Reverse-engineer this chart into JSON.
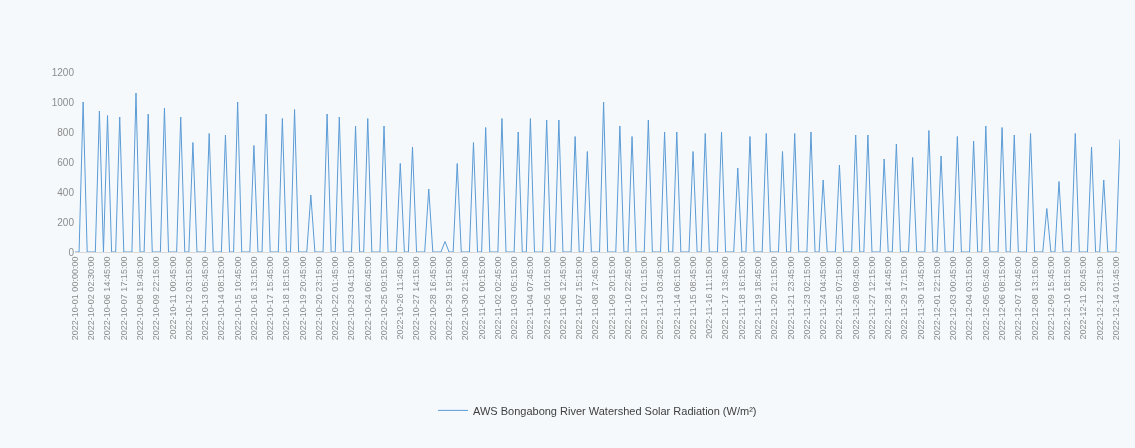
{
  "chart_data": {
    "type": "line",
    "categories": [
      "2022-10-01 00:00:00",
      null,
      null,
      null,
      "2022-10-02 02:30:00",
      null,
      null,
      null,
      "2022-10-06 14:45:00",
      null,
      null,
      null,
      "2022-10-07 17:15:00",
      null,
      null,
      null,
      "2022-10-08 19:45:00",
      null,
      null,
      null,
      "2022-10-09 22:15:00",
      null,
      null,
      null,
      "2022-10-11 00:45:00",
      null,
      null,
      null,
      "2022-10-12 03:15:00",
      null,
      null,
      null,
      "2022-10-13 05:45:00",
      null,
      null,
      null,
      "2022-10-14 08:15:00",
      null,
      null,
      null,
      "2022-10-15 10:45:00",
      null,
      null,
      null,
      "2022-10-16 13:15:00",
      null,
      null,
      null,
      "2022-10-17 15:45:00",
      null,
      null,
      null,
      "2022-10-18 18:15:00",
      null,
      null,
      null,
      "2022-10-19 20:45:00",
      null,
      null,
      null,
      "2022-10-20 23:15:00",
      null,
      null,
      null,
      "2022-10-22 01:45:00",
      null,
      null,
      null,
      "2022-10-23 04:15:00",
      null,
      null,
      null,
      "2022-10-24 06:45:00",
      null,
      null,
      null,
      "2022-10-25 09:15:00",
      null,
      null,
      null,
      "2022-10-26 11:45:00",
      null,
      null,
      null,
      "2022-10-27 14:15:00",
      null,
      null,
      null,
      "2022-10-28 16:45:00",
      null,
      null,
      null,
      "2022-10-29 19:15:00",
      null,
      null,
      null,
      "2022-10-30 21:45:00",
      null,
      null,
      null,
      "2022-11-01 00:15:00",
      null,
      null,
      null,
      "2022-11-02 02:45:00",
      null,
      null,
      null,
      "2022-11-03 05:15:00",
      null,
      null,
      null,
      "2022-11-04 07:45:00",
      null,
      null,
      null,
      "2022-11-05 10:15:00",
      null,
      null,
      null,
      "2022-11-06 12:45:00",
      null,
      null,
      null,
      "2022-11-07 15:15:00",
      null,
      null,
      null,
      "2022-11-08 17:45:00",
      null,
      null,
      null,
      "2022-11-09 20:15:00",
      null,
      null,
      null,
      "2022-11-10 22:45:00",
      null,
      null,
      null,
      "2022-11-12 01:15:00",
      null,
      null,
      null,
      "2022-11-13 03:45:00",
      null,
      null,
      null,
      "2022-11-14 06:15:00",
      null,
      null,
      null,
      "2022-11-15 08:45:00",
      null,
      null,
      null,
      "2022-11-16 11:15:00",
      null,
      null,
      null,
      "2022-11-17 13:45:00",
      null,
      null,
      null,
      "2022-11-18 16:15:00",
      null,
      null,
      null,
      "2022-11-19 18:45:00",
      null,
      null,
      null,
      "2022-11-20 21:15:00",
      null,
      null,
      null,
      "2022-11-21 23:45:00",
      null,
      null,
      null,
      "2022-11-23 02:15:00",
      null,
      null,
      null,
      "2022-11-24 04:45:00",
      null,
      null,
      null,
      "2022-11-25 07:15:00",
      null,
      null,
      null,
      "2022-11-26 09:45:00",
      null,
      null,
      null,
      "2022-11-27 12:15:00",
      null,
      null,
      null,
      "2022-11-28 14:45:00",
      null,
      null,
      null,
      "2022-11-29 17:15:00",
      null,
      null,
      null,
      "2022-11-30 19:45:00",
      null,
      null,
      null,
      "2022-12-01 22:15:00",
      null,
      null,
      null,
      "2022-12-03 00:45:00",
      null,
      null,
      null,
      "2022-12-04 03:15:00",
      null,
      null,
      null,
      "2022-12-05 05:45:00",
      null,
      null,
      null,
      "2022-12-06 08:15:00",
      null,
      null,
      null,
      "2022-12-07 10:45:00",
      null,
      null,
      null,
      "2022-12-08 13:15:00",
      null,
      null,
      null,
      "2022-12-09 15:45:00",
      null,
      null,
      null,
      "2022-12-10 18:15:00",
      null,
      null,
      null,
      "2022-12-11 20:45:00",
      null,
      null,
      null,
      "2022-12-12 23:15:00",
      null,
      null,
      null,
      "2022-12-14 01:45:00",
      null
    ],
    "series": [
      {
        "name": "AWS Bongabong River Watershed Solar Radiation (W/m²)",
        "color": "#5b9bd5",
        "values": [
          0,
          0,
          1000,
          0,
          0,
          0,
          940,
          0,
          910,
          0,
          0,
          900,
          0,
          0,
          0,
          1060,
          0,
          0,
          920,
          0,
          0,
          0,
          960,
          0,
          0,
          0,
          900,
          0,
          0,
          730,
          0,
          0,
          0,
          790,
          0,
          0,
          0,
          780,
          0,
          0,
          1000,
          0,
          0,
          0,
          710,
          0,
          0,
          920,
          0,
          0,
          0,
          890,
          0,
          0,
          950,
          0,
          0,
          0,
          380,
          0,
          0,
          0,
          920,
          0,
          0,
          900,
          0,
          0,
          0,
          840,
          0,
          0,
          890,
          0,
          0,
          0,
          840,
          0,
          0,
          0,
          590,
          0,
          0,
          700,
          0,
          0,
          0,
          420,
          0,
          0,
          0,
          70,
          0,
          0,
          590,
          0,
          0,
          0,
          730,
          0,
          0,
          830,
          0,
          0,
          0,
          890,
          0,
          0,
          0,
          800,
          0,
          0,
          890,
          0,
          0,
          0,
          880,
          0,
          0,
          880,
          0,
          0,
          0,
          770,
          0,
          0,
          670,
          0,
          0,
          0,
          1000,
          0,
          0,
          0,
          840,
          0,
          0,
          770,
          0,
          0,
          0,
          880,
          0,
          0,
          0,
          800,
          0,
          0,
          800,
          0,
          0,
          0,
          670,
          0,
          0,
          790,
          0,
          0,
          0,
          800,
          0,
          0,
          0,
          560,
          0,
          0,
          770,
          0,
          0,
          0,
          790,
          0,
          0,
          0,
          670,
          0,
          0,
          790,
          0,
          0,
          0,
          800,
          0,
          0,
          480,
          0,
          0,
          0,
          580,
          0,
          0,
          0,
          780,
          0,
          0,
          780,
          0,
          0,
          0,
          620,
          0,
          0,
          720,
          0,
          0,
          0,
          630,
          0,
          0,
          0,
          810,
          0,
          0,
          640,
          0,
          0,
          0,
          770,
          0,
          0,
          0,
          740,
          0,
          0,
          840,
          0,
          0,
          0,
          830,
          0,
          0,
          780,
          0,
          0,
          0,
          790,
          0,
          0,
          0,
          290,
          0,
          0,
          470,
          0,
          0,
          0,
          790,
          0,
          0,
          0,
          700,
          0,
          0,
          480,
          0,
          0,
          0,
          750
        ]
      }
    ],
    "ylim": [
      0,
      1200
    ],
    "yticks": [
      0,
      200,
      400,
      600,
      800,
      1000,
      1200
    ],
    "grid": false,
    "legend": "bottom",
    "marker": "none",
    "line_style": "solid"
  }
}
